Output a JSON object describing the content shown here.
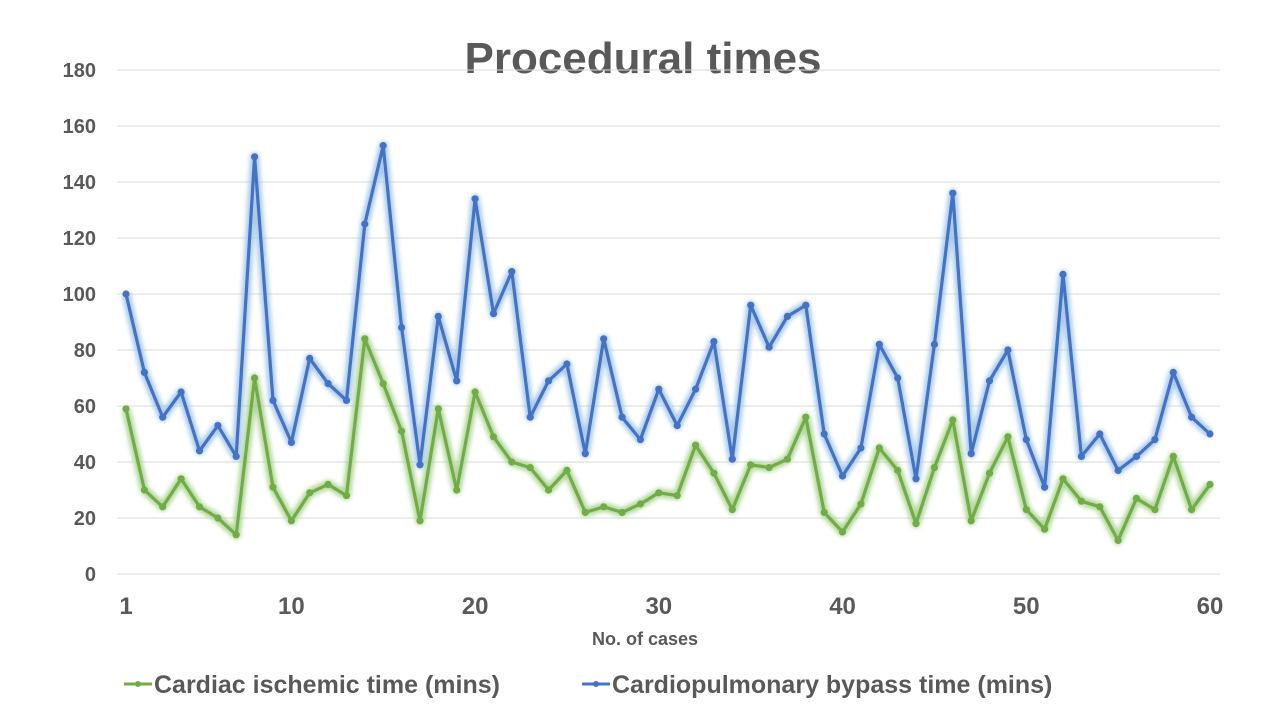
{
  "chart_data": {
    "type": "line",
    "title": "Procedural times",
    "xlabel": "No. of cases",
    "ylabel": "",
    "xlim": [
      1,
      60
    ],
    "ylim": [
      0,
      180
    ],
    "grid": true,
    "legend_position": "bottom",
    "y_ticks": [
      "0",
      "20",
      "40",
      "60",
      "80",
      "100",
      "120",
      "140",
      "160",
      "180"
    ],
    "y_tick_values": [
      0,
      20,
      40,
      60,
      80,
      100,
      120,
      140,
      160,
      180
    ],
    "x_ticks": [
      "1",
      "10",
      "20",
      "30",
      "40",
      "50",
      "60"
    ],
    "x_tick_values": [
      1,
      10,
      20,
      30,
      40,
      50,
      60
    ],
    "x": [
      1,
      2,
      3,
      4,
      5,
      6,
      7,
      8,
      9,
      10,
      11,
      12,
      13,
      14,
      15,
      16,
      17,
      18,
      19,
      20,
      21,
      22,
      23,
      24,
      25,
      26,
      27,
      28,
      29,
      30,
      31,
      32,
      33,
      34,
      35,
      36,
      37,
      38,
      39,
      40,
      41,
      42,
      43,
      44,
      45,
      46,
      47,
      48,
      49,
      50,
      51,
      52,
      53,
      54,
      55,
      56,
      57,
      58,
      59,
      60
    ],
    "series": [
      {
        "name": "Cardiac ischemic time (mins)",
        "color": "#70ad47",
        "glow": "#a9d18e",
        "values": [
          59,
          30,
          24,
          34,
          24,
          20,
          14,
          70,
          31,
          19,
          29,
          32,
          28,
          84,
          68,
          51,
          19,
          59,
          30,
          65,
          49,
          40,
          38,
          30,
          37,
          22,
          24,
          22,
          25,
          29,
          28,
          46,
          36,
          23,
          39,
          38,
          41,
          56,
          22,
          15,
          25,
          45,
          37,
          18,
          38,
          55,
          19,
          36,
          49,
          23,
          16,
          34,
          26,
          24,
          12,
          27,
          23,
          42,
          23,
          32
        ]
      },
      {
        "name": "Cardiopulmonary bypass time (mins)",
        "color": "#4472c4",
        "glow": "#9dc3e6",
        "values": [
          100,
          72,
          56,
          65,
          44,
          53,
          42,
          149,
          62,
          47,
          77,
          68,
          62,
          125,
          153,
          88,
          39,
          92,
          69,
          134,
          93,
          108,
          56,
          69,
          75,
          43,
          84,
          56,
          48,
          66,
          53,
          66,
          83,
          41,
          96,
          81,
          92,
          96,
          50,
          35,
          45,
          82,
          70,
          34,
          82,
          136,
          43,
          69,
          80,
          48,
          31,
          107,
          42,
          50,
          37,
          42,
          48,
          72,
          56,
          50
        ]
      }
    ]
  }
}
